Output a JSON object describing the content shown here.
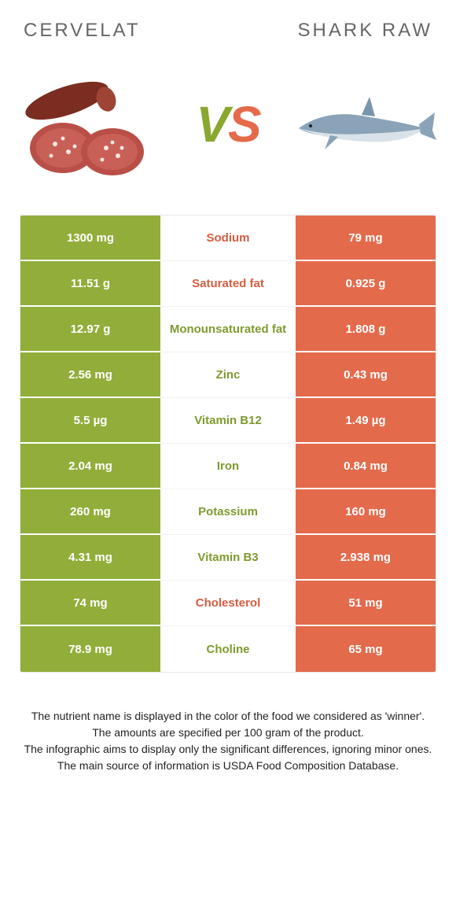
{
  "colors": {
    "left": "#91ae3a",
    "right": "#e46a4c",
    "left_text": "#7f9a2e",
    "right_text": "#d65c3f",
    "title_text": "#666666",
    "body_text": "#222222",
    "row_divider": "#ffffff"
  },
  "header": {
    "left_title": "CERVELAT",
    "right_title": "SHARK RAW",
    "vs_v": "V",
    "vs_s": "S"
  },
  "table": {
    "rows": [
      {
        "left": "1300 mg",
        "label": "Sodium",
        "right": "79 mg",
        "winner": "right"
      },
      {
        "left": "11.51 g",
        "label": "Saturated fat",
        "right": "0.925 g",
        "winner": "right"
      },
      {
        "left": "12.97 g",
        "label": "Monounsaturated fat",
        "right": "1.808 g",
        "winner": "left"
      },
      {
        "left": "2.56 mg",
        "label": "Zinc",
        "right": "0.43 mg",
        "winner": "left"
      },
      {
        "left": "5.5 µg",
        "label": "Vitamin B12",
        "right": "1.49 µg",
        "winner": "left"
      },
      {
        "left": "2.04 mg",
        "label": "Iron",
        "right": "0.84 mg",
        "winner": "left"
      },
      {
        "left": "260 mg",
        "label": "Potassium",
        "right": "160 mg",
        "winner": "left"
      },
      {
        "left": "4.31 mg",
        "label": "Vitamin B3",
        "right": "2.938 mg",
        "winner": "left"
      },
      {
        "left": "74 mg",
        "label": "Cholesterol",
        "right": "51 mg",
        "winner": "right"
      },
      {
        "left": "78.9 mg",
        "label": "Choline",
        "right": "65 mg",
        "winner": "left"
      }
    ]
  },
  "footer": {
    "line1": "The nutrient name is displayed in the color of the food we considered as 'winner'.",
    "line2": "The amounts are specified per 100 gram of the product.",
    "line3": "The infographic aims to display only the significant differences, ignoring minor ones.",
    "line4": "The main source of information is USDA Food Composition Database."
  }
}
